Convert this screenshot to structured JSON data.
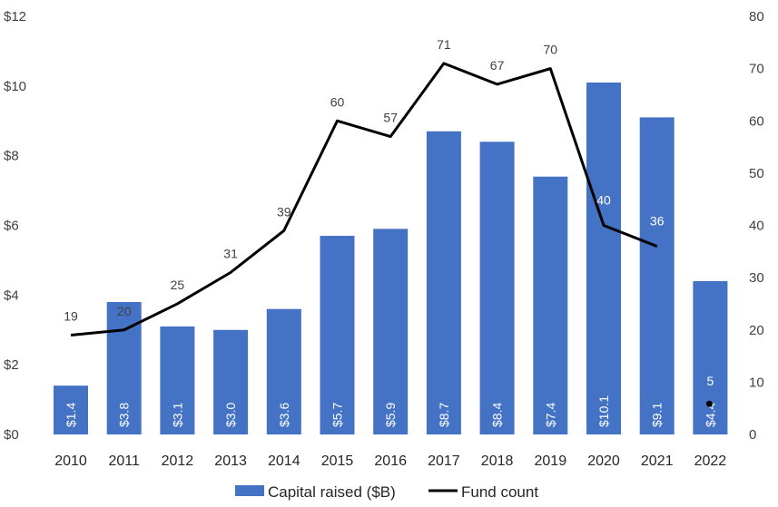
{
  "chart_data": {
    "type": "bar",
    "categories": [
      "2010",
      "2011",
      "2012",
      "2013",
      "2014",
      "2015",
      "2016",
      "2017",
      "2018",
      "2019",
      "2020",
      "2021",
      "2022"
    ],
    "series": [
      {
        "name": "Capital raised ($B)",
        "type": "bar",
        "axis": "left",
        "color": "#4472C4",
        "values": [
          1.4,
          3.8,
          3.1,
          3.0,
          3.6,
          5.7,
          5.9,
          8.7,
          8.4,
          7.4,
          10.1,
          9.1,
          4.4
        ],
        "labels": [
          "$1.4",
          "$3.8",
          "$3.1",
          "$3.0",
          "$3.6",
          "$5.7",
          "$5.9",
          "$8.7",
          "$8.4",
          "$7.4",
          "$10.1",
          "$9.1",
          "$4.4"
        ]
      },
      {
        "name": "Fund count",
        "type": "line",
        "axis": "right",
        "color": "#000000",
        "values": [
          19,
          20,
          25,
          31,
          39,
          60,
          57,
          71,
          67,
          70,
          40,
          36,
          5
        ]
      }
    ],
    "y_left": {
      "ylim": [
        0,
        12
      ],
      "ticks": [
        "$0",
        "$2",
        "$4",
        "$6",
        "$8",
        "$10",
        "$12"
      ]
    },
    "y_right": {
      "ylim": [
        0,
        80
      ],
      "ticks": [
        "0",
        "10",
        "20",
        "30",
        "40",
        "50",
        "60",
        "70",
        "80"
      ]
    },
    "legend": {
      "position": "bottom",
      "items": [
        "Capital raised ($B)",
        "Fund count"
      ]
    },
    "grid": false
  }
}
